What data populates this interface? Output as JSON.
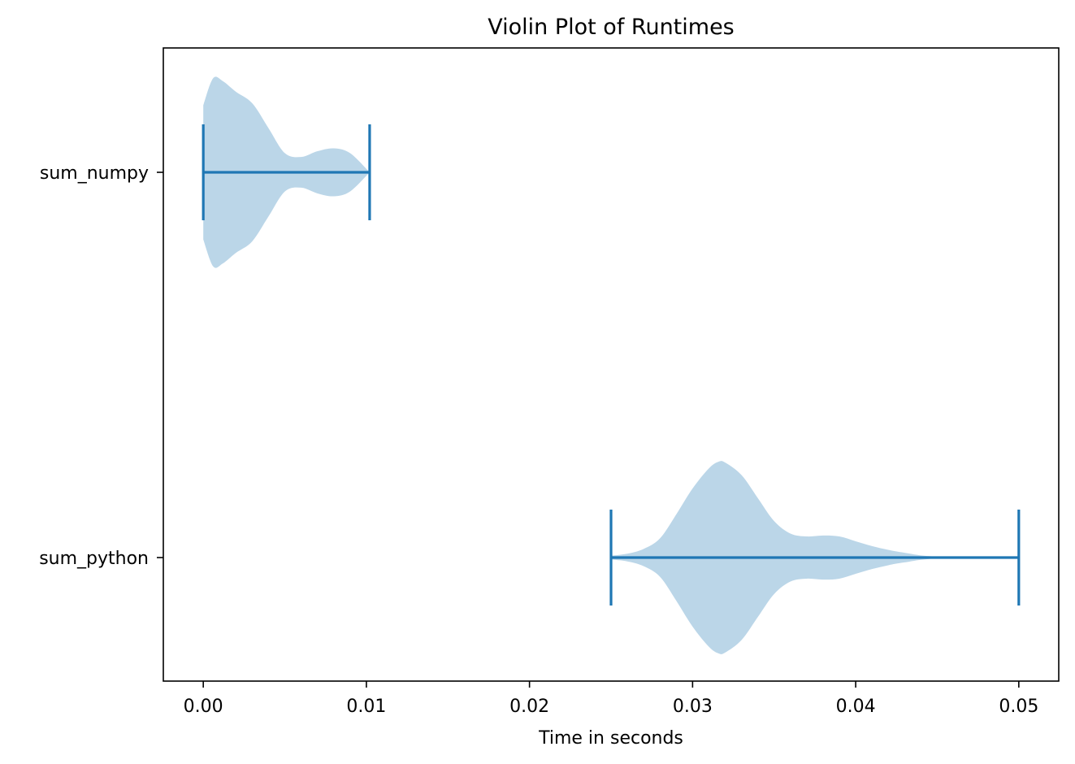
{
  "chart_data": {
    "type": "violin",
    "orientation": "horizontal",
    "title": "Violin Plot of Runtimes",
    "xlabel": "Time in seconds",
    "ylabel": "",
    "xlim": [
      -0.00245,
      0.05245
    ],
    "xticks": [
      0.0,
      0.01,
      0.02,
      0.03,
      0.04,
      0.05
    ],
    "xtick_labels": [
      "0.00",
      "0.01",
      "0.02",
      "0.03",
      "0.04",
      "0.05"
    ],
    "grid": false,
    "colors": {
      "body": "#1f77b4",
      "body_opacity": 0.3,
      "lines": "#1f77b4"
    },
    "series": [
      {
        "name": "sum_numpy",
        "min": 0.0,
        "max": 0.0102,
        "density": [
          [
            0.0,
            0.7
          ],
          [
            0.0006,
            0.98
          ],
          [
            0.0012,
            0.95
          ],
          [
            0.002,
            0.84
          ],
          [
            0.003,
            0.72
          ],
          [
            0.004,
            0.46
          ],
          [
            0.005,
            0.2
          ],
          [
            0.006,
            0.16
          ],
          [
            0.007,
            0.22
          ],
          [
            0.008,
            0.25
          ],
          [
            0.009,
            0.2
          ],
          [
            0.0102,
            0.0
          ]
        ]
      },
      {
        "name": "sum_python",
        "min": 0.025,
        "max": 0.05,
        "density": [
          [
            0.025,
            0.02
          ],
          [
            0.026,
            0.04
          ],
          [
            0.027,
            0.09
          ],
          [
            0.028,
            0.2
          ],
          [
            0.029,
            0.45
          ],
          [
            0.03,
            0.72
          ],
          [
            0.031,
            0.93
          ],
          [
            0.0316,
            1.0
          ],
          [
            0.032,
            0.99
          ],
          [
            0.033,
            0.86
          ],
          [
            0.034,
            0.62
          ],
          [
            0.035,
            0.38
          ],
          [
            0.036,
            0.25
          ],
          [
            0.037,
            0.22
          ],
          [
            0.038,
            0.23
          ],
          [
            0.039,
            0.22
          ],
          [
            0.04,
            0.17
          ],
          [
            0.041,
            0.12
          ],
          [
            0.042,
            0.08
          ],
          [
            0.043,
            0.05
          ],
          [
            0.045,
            0.01
          ],
          [
            0.05,
            0.0
          ]
        ]
      }
    ]
  }
}
